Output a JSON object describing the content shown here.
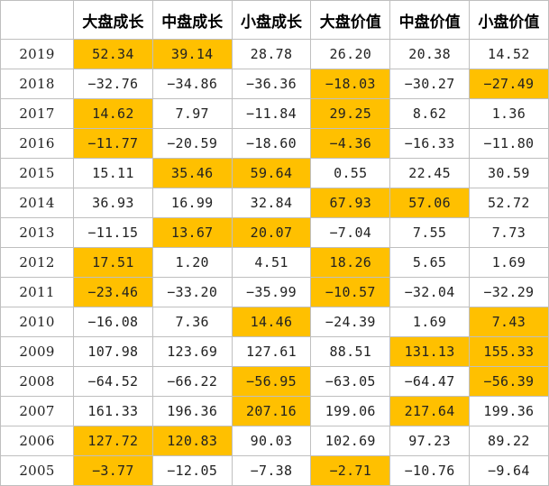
{
  "headers": [
    "",
    "大盘成长",
    "中盘成长",
    "小盘成长",
    "大盘价值",
    "中盘价值",
    "小盘价值"
  ],
  "highlight_color": "#ffc000",
  "rows": [
    {
      "year": "2019",
      "values": [
        "52.34",
        "39.14",
        "28.78",
        "26.20",
        "20.38",
        "14.52"
      ],
      "highlight": [
        true,
        true,
        false,
        false,
        false,
        false
      ]
    },
    {
      "year": "2018",
      "values": [
        "−32.76",
        "−34.86",
        "−36.36",
        "−18.03",
        "−30.27",
        "−27.49"
      ],
      "highlight": [
        false,
        false,
        false,
        true,
        false,
        true
      ]
    },
    {
      "year": "2017",
      "values": [
        "14.62",
        "7.97",
        "−11.84",
        "29.25",
        "8.62",
        "1.36"
      ],
      "highlight": [
        true,
        false,
        false,
        true,
        false,
        false
      ]
    },
    {
      "year": "2016",
      "values": [
        "−11.77",
        "−20.59",
        "−18.60",
        "−4.36",
        "−16.33",
        "−11.80"
      ],
      "highlight": [
        true,
        false,
        false,
        true,
        false,
        false
      ]
    },
    {
      "year": "2015",
      "values": [
        "15.11",
        "35.46",
        "59.64",
        "0.55",
        "22.45",
        "30.59"
      ],
      "highlight": [
        false,
        true,
        true,
        false,
        false,
        false
      ]
    },
    {
      "year": "2014",
      "values": [
        "36.93",
        "16.99",
        "32.84",
        "67.93",
        "57.06",
        "52.72"
      ],
      "highlight": [
        false,
        false,
        false,
        true,
        true,
        false
      ]
    },
    {
      "year": "2013",
      "values": [
        "−11.15",
        "13.67",
        "20.07",
        "−7.04",
        "7.55",
        "7.73"
      ],
      "highlight": [
        false,
        true,
        true,
        false,
        false,
        false
      ]
    },
    {
      "year": "2012",
      "values": [
        "17.51",
        "1.20",
        "4.51",
        "18.26",
        "5.65",
        "1.69"
      ],
      "highlight": [
        true,
        false,
        false,
        true,
        false,
        false
      ]
    },
    {
      "year": "2011",
      "values": [
        "−23.46",
        "−33.20",
        "−35.99",
        "−10.57",
        "−32.04",
        "−32.29"
      ],
      "highlight": [
        true,
        false,
        false,
        true,
        false,
        false
      ]
    },
    {
      "year": "2010",
      "values": [
        "−16.08",
        "7.36",
        "14.46",
        "−24.39",
        "1.69",
        "7.43"
      ],
      "highlight": [
        false,
        false,
        true,
        false,
        false,
        true
      ]
    },
    {
      "year": "2009",
      "values": [
        "107.98",
        "123.69",
        "127.61",
        "88.51",
        "131.13",
        "155.33"
      ],
      "highlight": [
        false,
        false,
        false,
        false,
        true,
        true
      ]
    },
    {
      "year": "2008",
      "values": [
        "−64.52",
        "−66.22",
        "−56.95",
        "−63.05",
        "−64.47",
        "−56.39"
      ],
      "highlight": [
        false,
        false,
        true,
        false,
        false,
        true
      ]
    },
    {
      "year": "2007",
      "values": [
        "161.33",
        "196.36",
        "207.16",
        "199.06",
        "217.64",
        "199.36"
      ],
      "highlight": [
        false,
        false,
        true,
        false,
        true,
        false
      ]
    },
    {
      "year": "2006",
      "values": [
        "127.72",
        "120.83",
        "90.03",
        "102.69",
        "97.23",
        "89.22"
      ],
      "highlight": [
        true,
        true,
        false,
        false,
        false,
        false
      ]
    },
    {
      "year": "2005",
      "values": [
        "−3.77",
        "−12.05",
        "−7.38",
        "−2.71",
        "−10.76",
        "−9.64"
      ],
      "highlight": [
        true,
        false,
        false,
        true,
        false,
        false
      ]
    }
  ]
}
